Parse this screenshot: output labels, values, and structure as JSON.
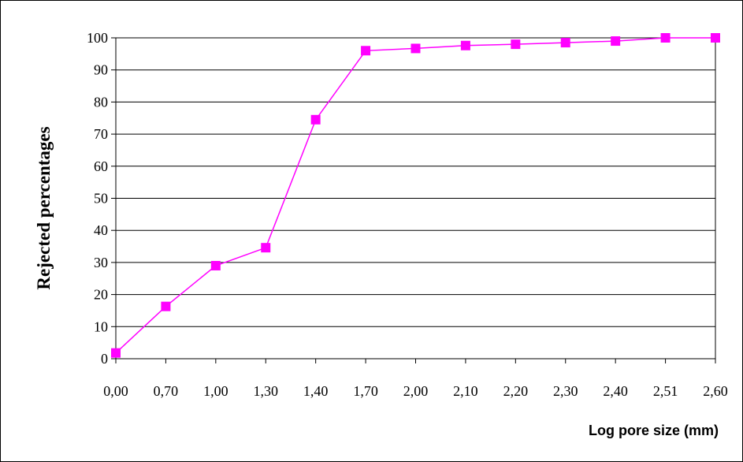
{
  "chart_data": {
    "type": "line",
    "title": "",
    "xlabel": "Log pore size (mm)",
    "ylabel": "Rejected percentages",
    "categories": [
      "0,00",
      "0,70",
      "1,00",
      "1,30",
      "1,40",
      "1,70",
      "2,00",
      "2,10",
      "2,20",
      "2,30",
      "2,40",
      "2,51",
      "2,60"
    ],
    "y_ticks": [
      0,
      10,
      20,
      30,
      40,
      50,
      60,
      70,
      80,
      90,
      100
    ],
    "ylim": [
      0,
      100
    ],
    "grid": "horizontal",
    "legend": "none",
    "series": [
      {
        "color": "#ff00ff",
        "marker": "square",
        "values": [
          1.8,
          16.3,
          29,
          34.6,
          74.5,
          96,
          96.7,
          97.6,
          98,
          98.5,
          99,
          100,
          100
        ]
      }
    ]
  }
}
